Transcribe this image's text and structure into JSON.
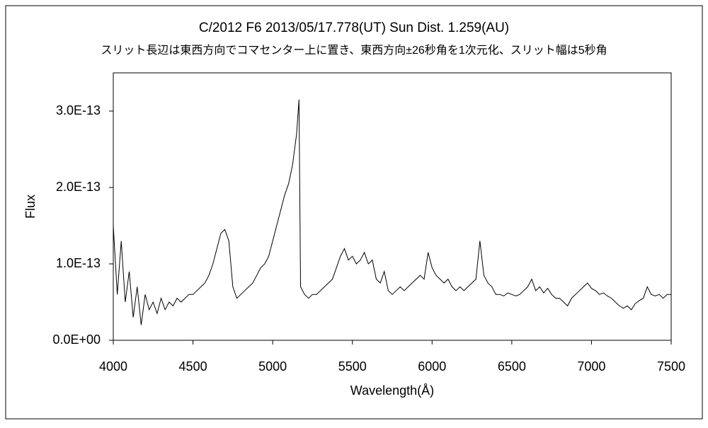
{
  "chart_data": {
    "type": "line",
    "title": "C/2012 F6    2013/05/17.778(UT)    Sun Dist. 1.259(AU)",
    "subtitle": "スリット長辺は東西方向でコマセンター上に置き、東西方向±26秒角を1次元化、スリット幅は5秒角",
    "x_label": "Wavelength(Å)",
    "y_label": "Flux",
    "color": "#000000",
    "x": [
      4000,
      4025,
      4050,
      4075,
      4100,
      4125,
      4150,
      4175,
      4200,
      4225,
      4250,
      4275,
      4300,
      4325,
      4350,
      4375,
      4400,
      4425,
      4450,
      4475,
      4500,
      4525,
      4550,
      4575,
      4600,
      4625,
      4650,
      4675,
      4700,
      4725,
      4750,
      4775,
      4800,
      4825,
      4850,
      4875,
      4900,
      4925,
      4950,
      4975,
      5000,
      5025,
      5050,
      5075,
      5100,
      5125,
      5150,
      5165,
      5175,
      5200,
      5225,
      5250,
      5275,
      5300,
      5325,
      5350,
      5375,
      5400,
      5425,
      5450,
      5475,
      5500,
      5525,
      5550,
      5575,
      5600,
      5625,
      5650,
      5675,
      5700,
      5725,
      5750,
      5775,
      5800,
      5825,
      5850,
      5875,
      5900,
      5925,
      5950,
      5975,
      6000,
      6025,
      6050,
      6075,
      6100,
      6125,
      6150,
      6175,
      6200,
      6225,
      6250,
      6275,
      6300,
      6325,
      6350,
      6375,
      6400,
      6425,
      6450,
      6475,
      6500,
      6525,
      6550,
      6575,
      6600,
      6625,
      6650,
      6675,
      6700,
      6725,
      6750,
      6775,
      6800,
      6825,
      6850,
      6875,
      6900,
      6925,
      6950,
      6975,
      7000,
      7025,
      7050,
      7075,
      7100,
      7125,
      7150,
      7175,
      7200,
      7225,
      7250,
      7275,
      7300,
      7325,
      7350,
      7375,
      7400,
      7425,
      7450,
      7475,
      7500
    ],
    "values": [
      1.5e-13,
      6e-14,
      1.3e-13,
      5e-14,
      9e-14,
      3e-14,
      7e-14,
      2e-14,
      6e-14,
      4e-14,
      5e-14,
      3.5e-14,
      5.5e-14,
      4e-14,
      5e-14,
      4.5e-14,
      5.5e-14,
      5e-14,
      5.5e-14,
      6e-14,
      6e-14,
      6.5e-14,
      7e-14,
      7.5e-14,
      8.5e-14,
      1e-13,
      1.2e-13,
      1.4e-13,
      1.45e-13,
      1.3e-13,
      7e-14,
      5.5e-14,
      6e-14,
      6.5e-14,
      7e-14,
      7.5e-14,
      8.5e-14,
      9.5e-14,
      1e-13,
      1.1e-13,
      1.3e-13,
      1.5e-13,
      1.7e-13,
      1.9e-13,
      2.05e-13,
      2.3e-13,
      2.7e-13,
      3.15e-13,
      7e-14,
      6e-14,
      5.5e-14,
      6e-14,
      6e-14,
      6.5e-14,
      7e-14,
      7.5e-14,
      8e-14,
      9.5e-14,
      1.1e-13,
      1.2e-13,
      1.05e-13,
      1.1e-13,
      1e-13,
      1.05e-13,
      1.15e-13,
      1e-13,
      1.05e-13,
      8e-14,
      7.5e-14,
      9e-14,
      6.5e-14,
      6e-14,
      6.5e-14,
      7e-14,
      6.5e-14,
      7e-14,
      7.5e-14,
      8e-14,
      8.5e-14,
      8e-14,
      1.15e-13,
      9.5e-14,
      8.5e-14,
      8e-14,
      7.5e-14,
      8e-14,
      7e-14,
      6.5e-14,
      7e-14,
      6.5e-14,
      7e-14,
      7.5e-14,
      8e-14,
      1.3e-13,
      8.5e-14,
      7.5e-14,
      7e-14,
      6e-14,
      6e-14,
      5.8e-14,
      6.2e-14,
      6e-14,
      5.8e-14,
      6e-14,
      6.5e-14,
      7e-14,
      8e-14,
      6.5e-14,
      7e-14,
      6.2e-14,
      6.8e-14,
      6e-14,
      5.5e-14,
      5.5e-14,
      5e-14,
      4.5e-14,
      5.5e-14,
      6e-14,
      6.5e-14,
      7e-14,
      7.5e-14,
      6.8e-14,
      6.5e-14,
      6e-14,
      6.2e-14,
      5.8e-14,
      5.5e-14,
      5e-14,
      4.5e-14,
      4.2e-14,
      4.5e-14,
      4e-14,
      4.8e-14,
      5.2e-14,
      5.5e-14,
      7e-14,
      6e-14,
      5.8e-14,
      6e-14,
      5.5e-14,
      6e-14,
      6e-14
    ],
    "xlim": [
      4000,
      7500
    ],
    "xticks": [
      4000,
      4500,
      5000,
      5500,
      6000,
      6500,
      7000,
      7500
    ],
    "ylim": [
      0,
      3.5e-13
    ],
    "yticks": [
      {
        "value": 0,
        "label": "0.0E+00"
      },
      {
        "value": 1e-13,
        "label": "1.0E-13"
      },
      {
        "value": 2e-13,
        "label": "2.0E-13"
      },
      {
        "value": 3e-13,
        "label": "3.0E-13"
      }
    ],
    "grid": false
  }
}
